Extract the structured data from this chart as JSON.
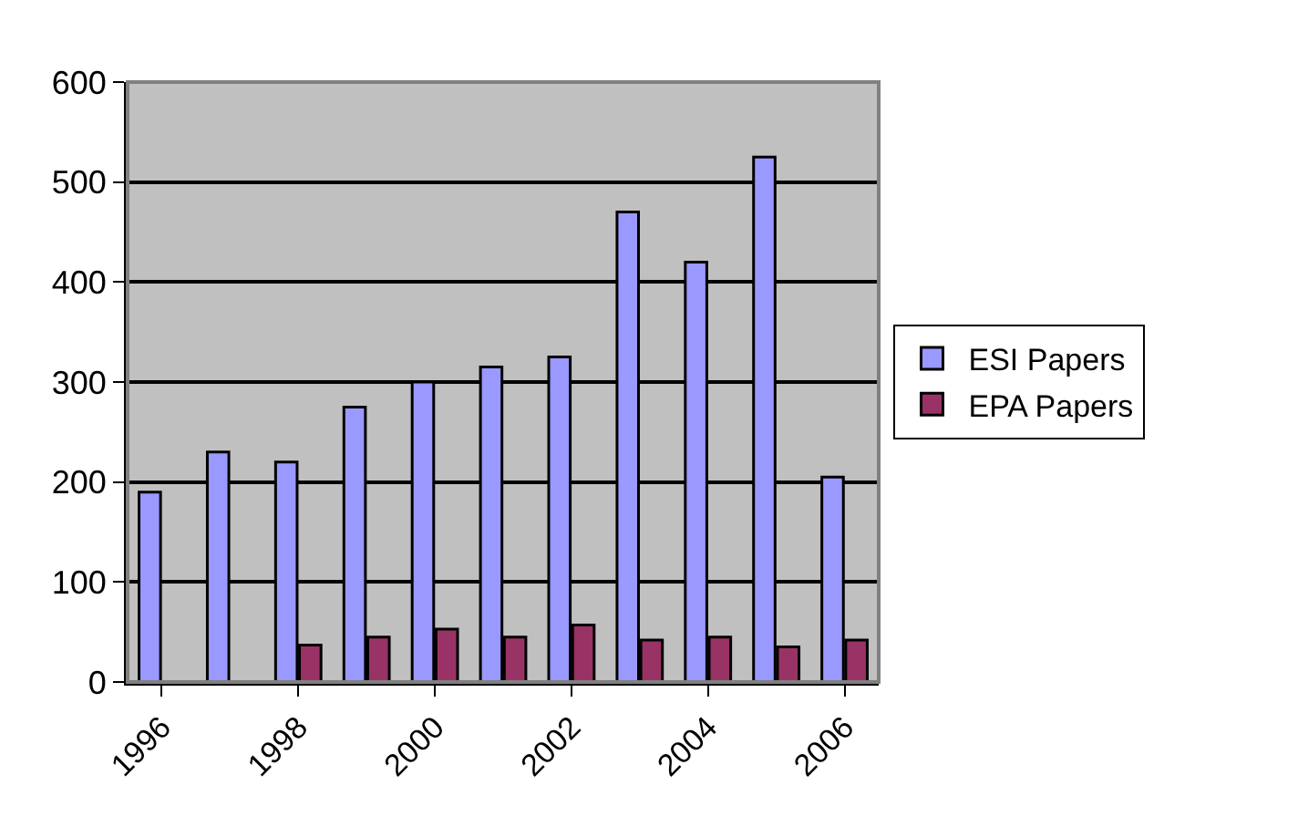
{
  "chart_data": {
    "type": "bar",
    "categories": [
      "1996",
      null,
      "1998",
      null,
      "2000",
      null,
      "2002",
      null,
      "2004",
      null,
      "2006"
    ],
    "series": [
      {
        "name": "ESI Papers",
        "color": "#9999ff",
        "values": [
          190,
          230,
          220,
          275,
          300,
          315,
          325,
          470,
          420,
          525,
          205
        ]
      },
      {
        "name": "EPA Papers",
        "color": "#993366",
        "values": [
          null,
          null,
          37,
          45,
          53,
          45,
          57,
          42,
          45,
          35,
          42
        ]
      }
    ],
    "ylim": [
      0,
      600
    ],
    "yticks": [
      0,
      100,
      200,
      300,
      400,
      500,
      600
    ],
    "grid": "y",
    "legend": "right"
  }
}
